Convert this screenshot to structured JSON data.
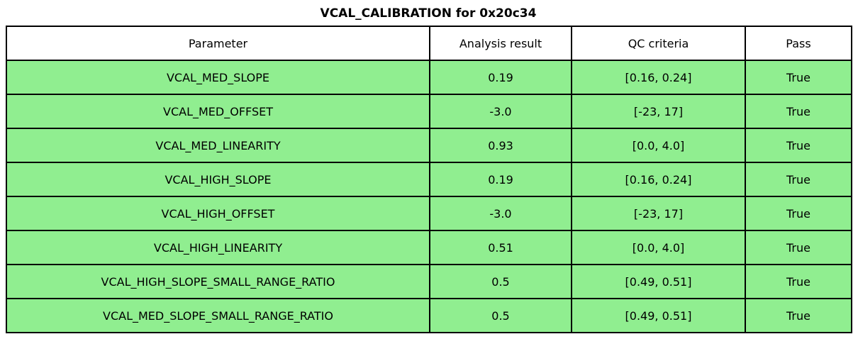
{
  "title": "VCAL_CALIBRATION for 0x20c34",
  "table": {
    "columns": [
      "Parameter",
      "Analysis result",
      "QC criteria",
      "Pass"
    ],
    "rows": [
      [
        "VCAL_MED_SLOPE",
        "0.19",
        "[0.16, 0.24]",
        "True"
      ],
      [
        "VCAL_MED_OFFSET",
        "-3.0",
        "[-23, 17]",
        "True"
      ],
      [
        "VCAL_MED_LINEARITY",
        "0.93",
        "[0.0, 4.0]",
        "True"
      ],
      [
        "VCAL_HIGH_SLOPE",
        "0.19",
        "[0.16, 0.24]",
        "True"
      ],
      [
        "VCAL_HIGH_OFFSET",
        "-3.0",
        "[-23, 17]",
        "True"
      ],
      [
        "VCAL_HIGH_LINEARITY",
        "0.51",
        "[0.0, 4.0]",
        "True"
      ],
      [
        "VCAL_HIGH_SLOPE_SMALL_RANGE_RATIO",
        "0.5",
        "[0.49, 0.51]",
        "True"
      ],
      [
        "VCAL_MED_SLOPE_SMALL_RANGE_RATIO",
        "0.5",
        "[0.49, 0.51]",
        "True"
      ]
    ]
  },
  "colors": {
    "row_bg": "#90ee90",
    "header_bg": "#ffffff",
    "border": "#000000",
    "text": "#000000"
  },
  "chart_data": {
    "type": "table",
    "title": "VCAL_CALIBRATION for 0x20c34",
    "columns": [
      "Parameter",
      "Analysis result",
      "QC criteria",
      "Pass"
    ],
    "rows": [
      {
        "parameter": "VCAL_MED_SLOPE",
        "analysis_result": 0.19,
        "qc_criteria": "[0.16, 0.24]",
        "pass": true
      },
      {
        "parameter": "VCAL_MED_OFFSET",
        "analysis_result": -3.0,
        "qc_criteria": "[-23, 17]",
        "pass": true
      },
      {
        "parameter": "VCAL_MED_LINEARITY",
        "analysis_result": 0.93,
        "qc_criteria": "[0.0, 4.0]",
        "pass": true
      },
      {
        "parameter": "VCAL_HIGH_SLOPE",
        "analysis_result": 0.19,
        "qc_criteria": "[0.16, 0.24]",
        "pass": true
      },
      {
        "parameter": "VCAL_HIGH_OFFSET",
        "analysis_result": -3.0,
        "qc_criteria": "[-23, 17]",
        "pass": true
      },
      {
        "parameter": "VCAL_HIGH_LINEARITY",
        "analysis_result": 0.51,
        "qc_criteria": "[0.0, 4.0]",
        "pass": true
      },
      {
        "parameter": "VCAL_HIGH_SLOPE_SMALL_RANGE_RATIO",
        "analysis_result": 0.5,
        "qc_criteria": "[0.49, 0.51]",
        "pass": true
      },
      {
        "parameter": "VCAL_MED_SLOPE_SMALL_RANGE_RATIO",
        "analysis_result": 0.5,
        "qc_criteria": "[0.49, 0.51]",
        "pass": true
      }
    ]
  }
}
